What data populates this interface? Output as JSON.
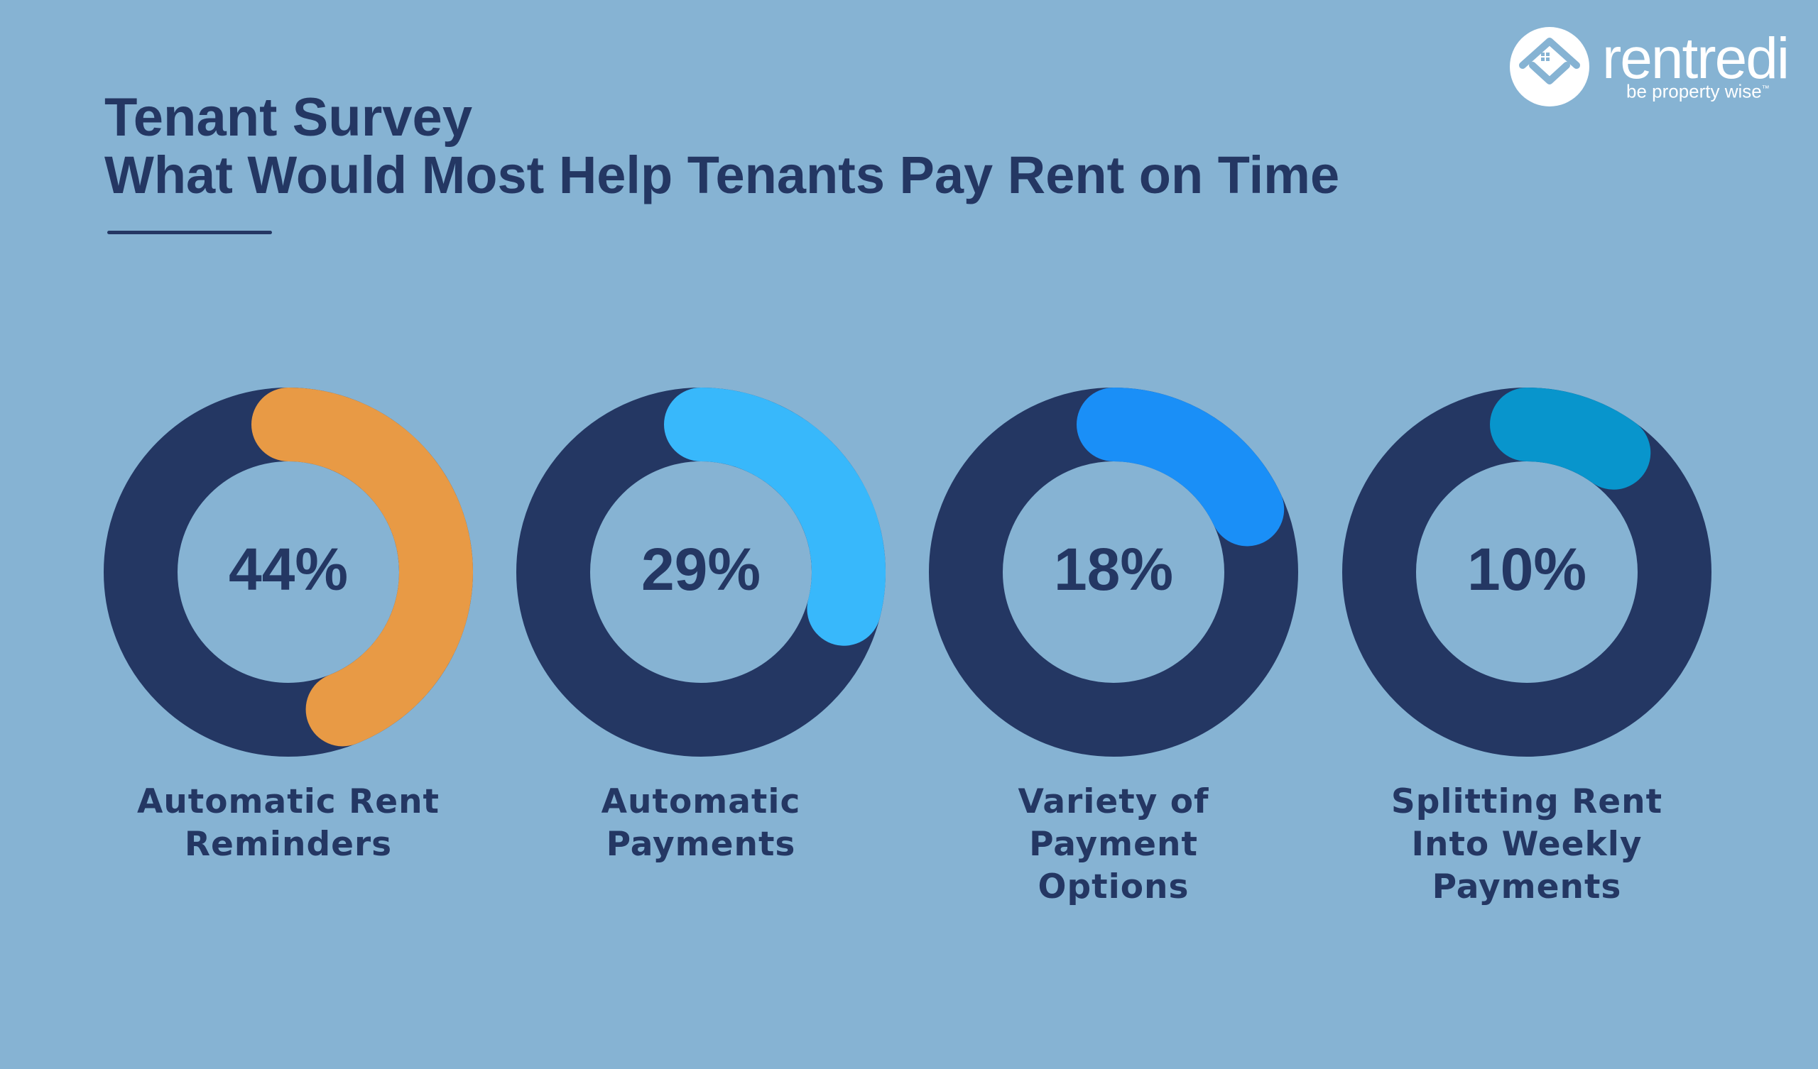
{
  "colors": {
    "background": "#86b3d3",
    "ring": "#243763",
    "text": "#243763",
    "white": "#ffffff"
  },
  "header": {
    "title": "Tenant Survey",
    "subtitle": "What Would Most Help Tenants Pay Rent on Time"
  },
  "brand": {
    "name": "rentredi",
    "tagline": "be property wise",
    "trademark": "™",
    "icon": "house-logo-icon"
  },
  "chart_data": {
    "type": "donut",
    "title": "Tenant Survey",
    "subtitle": "What Would Most Help Tenants Pay Rent on Time",
    "unit": "%",
    "max": 100,
    "items": [
      {
        "label": "Automatic Rent\nReminders",
        "value": 44,
        "display": "44%",
        "color": "#e89a45"
      },
      {
        "label": "Automatic\nPayments",
        "value": 29,
        "display": "29%",
        "color": "#38b8fb"
      },
      {
        "label": "Variety of\nPayment\nOptions",
        "value": 18,
        "display": "18%",
        "color": "#1a8ff7"
      },
      {
        "label": "Splitting Rent\nInto Weekly\nPayments",
        "value": 10,
        "display": "10%",
        "color": "#0895cc"
      }
    ]
  }
}
